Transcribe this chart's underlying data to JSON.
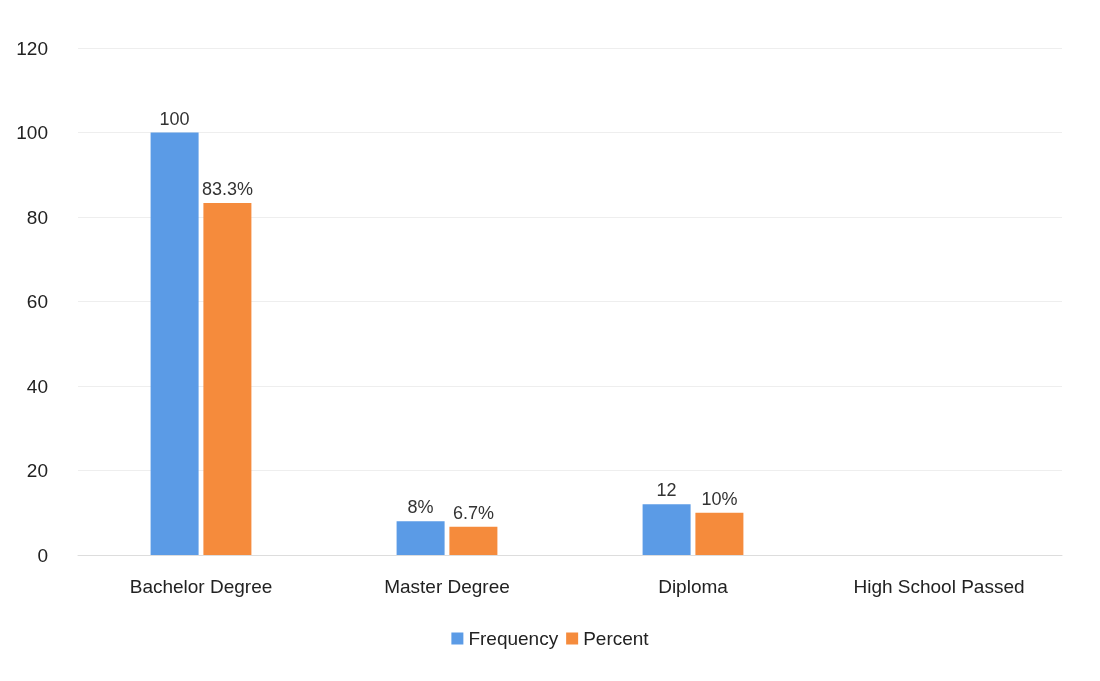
{
  "chart_data": {
    "type": "bar",
    "categories": [
      "Bachelor Degree",
      "Master Degree",
      "Diploma",
      "High School Passed"
    ],
    "series": [
      {
        "name": "Frequency",
        "color": "#5b9be6",
        "values": [
          100,
          8,
          12,
          null
        ],
        "value_labels": [
          "100",
          "8%",
          "12",
          null
        ]
      },
      {
        "name": "Percent",
        "color": "#f58b3c",
        "values": [
          83.3,
          6.7,
          10,
          null
        ],
        "value_labels": [
          "83.3%",
          "6.7%",
          "10%",
          null
        ]
      }
    ],
    "ylim": [
      0,
      120
    ],
    "yticks": [
      0,
      20,
      40,
      60,
      80,
      100,
      120
    ],
    "grid": "y",
    "legend": "bottom"
  }
}
